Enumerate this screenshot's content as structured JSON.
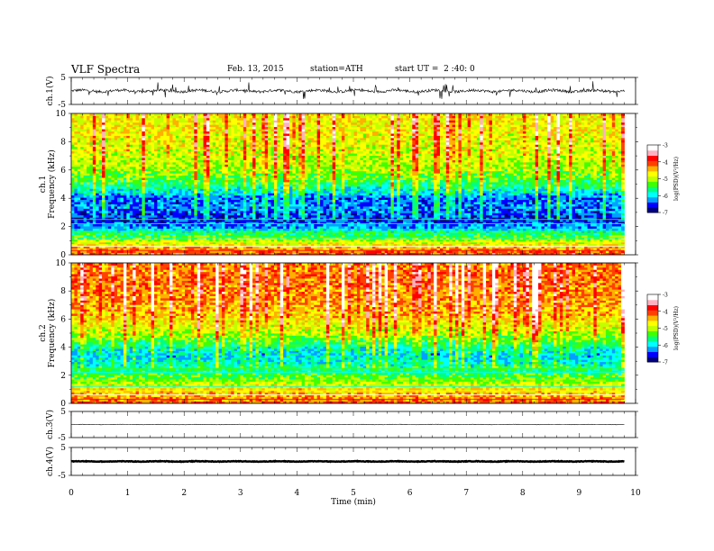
{
  "header": {
    "title": "VLF Spectra",
    "date": "Feb. 13, 2015",
    "station": "station=ATH",
    "start_time": "start UT =  2 :40: 0"
  },
  "chart_data": [
    {
      "type": "line",
      "panel": "ch1-waveform",
      "ylabel": "ch.1(V)",
      "yticks": [
        "5",
        "-5"
      ],
      "ylim": [
        -5,
        5
      ],
      "xlim": [
        0,
        10
      ],
      "data_extent_min": [
        0,
        9.8
      ],
      "baseline": 0,
      "noise_amplitude": 1.0,
      "note_spikes": "frequent impulsive spikes reaching about ±3 V"
    },
    {
      "type": "heatmap",
      "panel": "ch1-spectrogram",
      "ylabel": "ch.1 Frequency (kHz)",
      "yticks": [
        "0",
        "2",
        "4",
        "6",
        "8",
        "10"
      ],
      "ylim": [
        0,
        10
      ],
      "xlim": [
        0,
        10
      ],
      "data_extent_min": [
        0,
        9.8
      ],
      "colorbar": {
        "label": "log(PSD)(V²/Hz)",
        "ticks": [
          "-3",
          "-4",
          "-5",
          "-6",
          "-7"
        ],
        "range": [
          -7,
          -3
        ]
      },
      "colormap": [
        "#000080",
        "#0000ff",
        "#00a0ff",
        "#00ffff",
        "#00ff80",
        "#40ff00",
        "#c0ff00",
        "#ffff00",
        "#ffb000",
        "#ff4000",
        "#ff0000",
        "#ffb0c0",
        "#ffffff"
      ],
      "band_profile_kHz_logPSD": [
        [
          0,
          -3.8
        ],
        [
          0.5,
          -4.4
        ],
        [
          1,
          -5.0
        ],
        [
          1.5,
          -5.6
        ],
        [
          2,
          -6.3
        ],
        [
          2.5,
          -6.7
        ],
        [
          3,
          -6.5
        ],
        [
          3.5,
          -6.4
        ],
        [
          4,
          -6.5
        ],
        [
          4.5,
          -6.0
        ],
        [
          5,
          -5.6
        ],
        [
          5.5,
          -5.3
        ],
        [
          6,
          -5.1
        ],
        [
          7,
          -4.9
        ],
        [
          8,
          -4.8
        ],
        [
          9,
          -4.7
        ],
        [
          10,
          -4.7
        ]
      ]
    },
    {
      "type": "heatmap",
      "panel": "ch2-spectrogram",
      "ylabel": "ch.2 Frequency (kHz)",
      "yticks": [
        "0",
        "2",
        "4",
        "6",
        "8",
        "10"
      ],
      "ylim": [
        0,
        10
      ],
      "xlim": [
        0,
        10
      ],
      "data_extent_min": [
        0,
        9.8
      ],
      "colorbar": {
        "label": "log(PSD)(V²/Hz)",
        "ticks": [
          "-3",
          "-4",
          "-5",
          "-6",
          "-7"
        ],
        "range": [
          -7,
          -3
        ]
      },
      "band_profile_kHz_logPSD": [
        [
          0,
          -4.0
        ],
        [
          0.5,
          -4.3
        ],
        [
          1,
          -4.6
        ],
        [
          1.5,
          -5.0
        ],
        [
          2,
          -5.4
        ],
        [
          2.5,
          -5.7
        ],
        [
          3,
          -6.0
        ],
        [
          3.5,
          -6.1
        ],
        [
          4,
          -5.8
        ],
        [
          4.5,
          -5.4
        ],
        [
          5,
          -5.0
        ],
        [
          6,
          -4.6
        ],
        [
          7,
          -4.3
        ],
        [
          8,
          -4.2
        ],
        [
          9,
          -4.1
        ],
        [
          10,
          -4.2
        ]
      ]
    },
    {
      "type": "line",
      "panel": "ch3-waveform",
      "ylabel": "ch.3(V)",
      "yticks": [
        "5",
        "-5"
      ],
      "ylim": [
        -5,
        5
      ],
      "xlim": [
        0,
        10
      ],
      "data_extent_min": [
        0,
        9.8
      ],
      "baseline": 0,
      "noise_amplitude": 0.15
    },
    {
      "type": "line",
      "panel": "ch4-waveform",
      "ylabel": "ch.4(V)",
      "yticks": [
        "5",
        "-5"
      ],
      "ylim": [
        -5,
        5
      ],
      "xlim": [
        0,
        10
      ],
      "data_extent_min": [
        0,
        9.8
      ],
      "baseline": 0,
      "noise_amplitude": 0.2
    }
  ],
  "xaxis": {
    "label": "Time (min)",
    "ticks": [
      "0",
      "1",
      "2",
      "3",
      "4",
      "5",
      "6",
      "7",
      "8",
      "9",
      "10"
    ]
  }
}
